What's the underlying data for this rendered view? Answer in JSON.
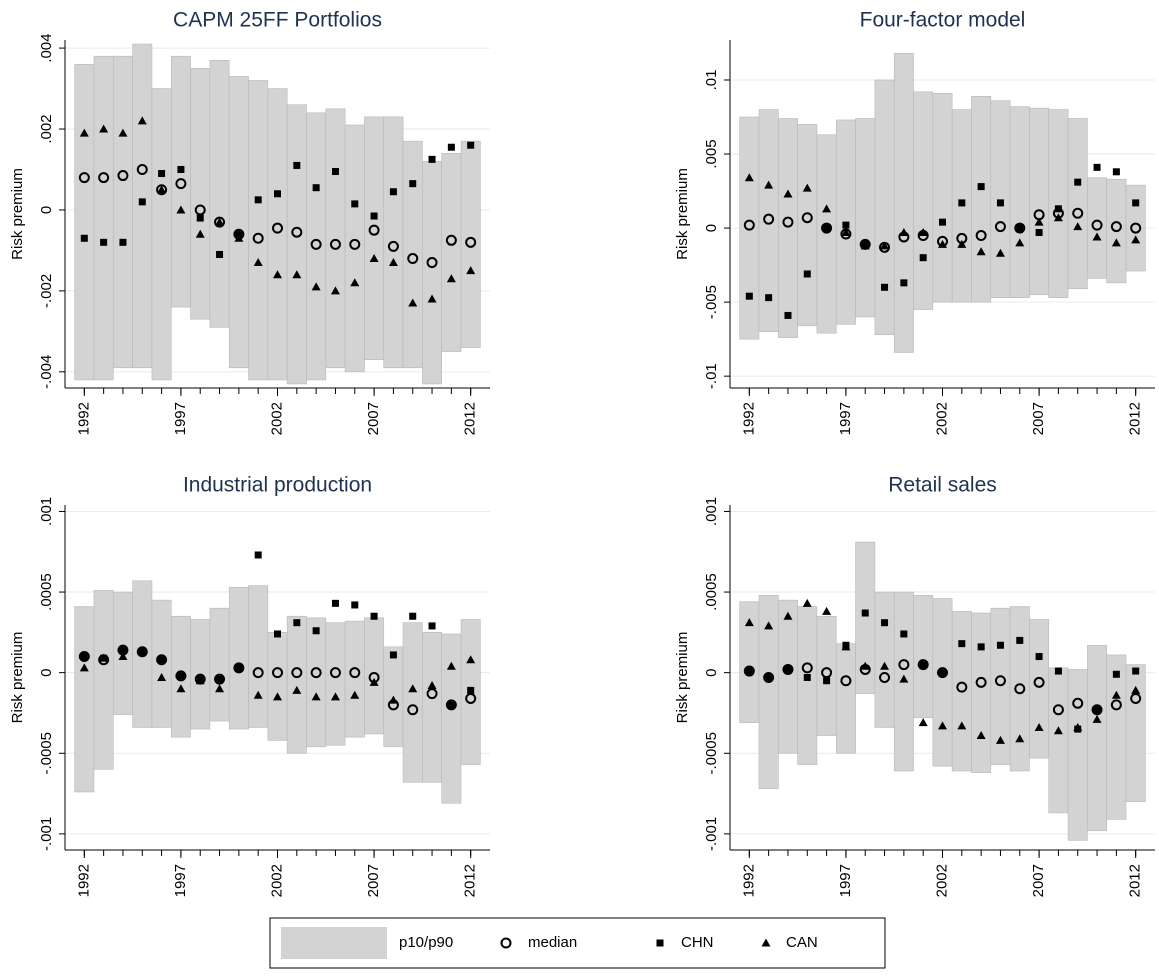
{
  "legend": {
    "items": [
      {
        "name": "p10/p90",
        "color": "#d3d3d3",
        "marker": "band"
      },
      {
        "name": "median",
        "color": "#000000",
        "marker": "circle-open"
      },
      {
        "name": "CHN",
        "color": "#000000",
        "marker": "square"
      },
      {
        "name": "CAN",
        "color": "#000000",
        "marker": "triangle"
      }
    ]
  },
  "chart_data": [
    {
      "type": "rangescatter",
      "title": "CAPM 25FF Portfolios",
      "ylabel": "Risk premium",
      "grid": true,
      "x": [
        1992,
        1993,
        1994,
        1995,
        1996,
        1997,
        1998,
        1999,
        2000,
        2001,
        2002,
        2003,
        2004,
        2005,
        2006,
        2007,
        2008,
        2009,
        2010,
        2011,
        2012
      ],
      "xlim": [
        1991,
        2013
      ],
      "xticks": [
        1992,
        1997,
        2002,
        2007,
        2012
      ],
      "ylim": [
        -0.0044,
        0.0042
      ],
      "yticks": [
        {
          "value": -0.004,
          "label": "-.004"
        },
        {
          "value": -0.002,
          "label": "-.002"
        },
        0,
        {
          "value": 0.002,
          "label": ".002"
        },
        {
          "value": 0.004,
          "label": ".004"
        }
      ],
      "p10": [
        -0.0042,
        -0.0042,
        -0.0039,
        -0.0039,
        -0.0042,
        -0.0024,
        -0.0027,
        -0.0029,
        -0.0039,
        -0.0042,
        -0.0042,
        -0.0043,
        -0.0042,
        -0.0039,
        -0.004,
        -0.0037,
        -0.0039,
        -0.0039,
        -0.0043,
        -0.0035,
        -0.0034
      ],
      "p90": [
        0.0036,
        0.0038,
        0.0038,
        0.0041,
        0.003,
        0.0038,
        0.0035,
        0.0037,
        0.0033,
        0.0032,
        0.003,
        0.0026,
        0.0024,
        0.0025,
        0.0021,
        0.0023,
        0.0023,
        0.0017,
        0.0012,
        0.0014,
        0.0017
      ],
      "series": [
        {
          "values": [
            0.0008,
            0.0008,
            0.00085,
            0.001,
            0.0005,
            0.00065,
            0,
            -0.0003,
            -0.0006,
            -0.0007,
            -0.00045,
            -0.00055,
            -0.00085,
            -0.00085,
            -0.00085,
            -0.0005,
            -0.0009,
            -0.0012,
            -0.0013,
            -0.00075,
            -0.0008
          ]
        },
        {
          "values": [
            -0.0007,
            -0.0008,
            -0.0008,
            0.0002,
            0.0009,
            0.001,
            -0.0002,
            -0.0011,
            -0.0006,
            0.00025,
            0.0004,
            0.0011,
            0.00055,
            0.00095,
            0.00015,
            -0.00015,
            0.00045,
            0.00065,
            0.00125,
            0.00155,
            0.0016
          ]
        },
        {
          "values": [
            0.0019,
            0.002,
            0.0019,
            0.0022,
            0.0005,
            0,
            -0.0006,
            -0.0003,
            -0.0007,
            -0.0013,
            -0.0016,
            -0.0016,
            -0.0019,
            -0.002,
            -0.0018,
            -0.0012,
            -0.0013,
            -0.0023,
            -0.0022,
            -0.0017,
            -0.0015
          ]
        }
      ]
    },
    {
      "type": "rangescatter",
      "title": "Four-factor model",
      "ylabel": "Risk premium",
      "grid": true,
      "x": [
        1992,
        1993,
        1994,
        1995,
        1996,
        1997,
        1998,
        1999,
        2000,
        2001,
        2002,
        2003,
        2004,
        2005,
        2006,
        2007,
        2008,
        2009,
        2010,
        2011,
        2012
      ],
      "xlim": [
        1991,
        2013
      ],
      "xticks": [
        1992,
        1997,
        2002,
        2007,
        2012
      ],
      "ylim": [
        -0.0108,
        0.0127
      ],
      "yticks": [
        {
          "value": -0.01,
          "label": "-.01"
        },
        {
          "value": -0.005,
          "label": "-.005"
        },
        0,
        {
          "value": 0.005,
          "label": ".005"
        },
        {
          "value": 0.01,
          "label": ".01"
        }
      ],
      "p10": [
        -0.0075,
        -0.007,
        -0.0074,
        -0.0066,
        -0.0071,
        -0.0065,
        -0.006,
        -0.0072,
        -0.0084,
        -0.0055,
        -0.005,
        -0.005,
        -0.005,
        -0.0047,
        -0.0047,
        -0.0045,
        -0.0047,
        -0.0041,
        -0.0034,
        -0.0037,
        -0.0029
      ],
      "p90": [
        0.0075,
        0.008,
        0.0074,
        0.007,
        0.0063,
        0.0073,
        0.0074,
        0.01,
        0.0118,
        0.0092,
        0.0091,
        0.008,
        0.0089,
        0.0086,
        0.0082,
        0.0081,
        0.008,
        0.0074,
        0.0034,
        0.0033,
        0.0029
      ],
      "series": [
        {
          "values": [
            0.0002,
            0.0006,
            0.0004,
            0.0007,
            0,
            -0.0004,
            -0.0011,
            -0.0013,
            -0.0006,
            -0.0005,
            -0.0009,
            -0.0007,
            -0.0005,
            0.0001,
            0,
            0.0009,
            0.001,
            0.001,
            0.0002,
            0.0001,
            0
          ]
        },
        {
          "values": [
            -0.0046,
            -0.0047,
            -0.0059,
            -0.0031,
            0,
            0.0002,
            -0.0011,
            -0.004,
            -0.0037,
            -0.002,
            0.0004,
            0.0017,
            0.0028,
            0.0017,
            0,
            -0.0003,
            0.0013,
            0.0031,
            0.0041,
            0.0038,
            0.0017
          ]
        },
        {
          "values": [
            0.0034,
            0.0029,
            0.0023,
            0.0027,
            0.0013,
            -0.0003,
            -0.0012,
            -0.0012,
            -0.0003,
            -0.0003,
            -0.0011,
            -0.0011,
            -0.0016,
            -0.0017,
            -0.001,
            0.0004,
            0.0007,
            0.0001,
            -0.0006,
            -0.001,
            -0.0008
          ]
        }
      ]
    },
    {
      "type": "rangescatter",
      "title": "Industrial production",
      "ylabel": "Risk premium",
      "grid": true,
      "x": [
        1992,
        1993,
        1994,
        1995,
        1996,
        1997,
        1998,
        1999,
        2000,
        2001,
        2002,
        2003,
        2004,
        2005,
        2006,
        2007,
        2008,
        2009,
        2010,
        2011,
        2012
      ],
      "xlim": [
        1991,
        2013
      ],
      "xticks": [
        1992,
        1997,
        2002,
        2007,
        2012
      ],
      "ylim": [
        -0.0011,
        0.00104
      ],
      "yticks": [
        {
          "value": -0.001,
          "label": "-.001"
        },
        {
          "value": -0.0005,
          "label": "-.0005"
        },
        0,
        {
          "value": 0.0005,
          "label": ".0005"
        },
        {
          "value": 0.001,
          "label": ".001"
        }
      ],
      "p10": [
        -0.00074,
        -0.0006,
        -0.00026,
        -0.00034,
        -0.00034,
        -0.0004,
        -0.00035,
        -0.0003,
        -0.00035,
        -0.00034,
        -0.00042,
        -0.0005,
        -0.00046,
        -0.00045,
        -0.0004,
        -0.00038,
        -0.00046,
        -0.00068,
        -0.00068,
        -0.00081,
        -0.00057
      ],
      "p90": [
        0.00041,
        0.00051,
        0.0005,
        0.00057,
        0.00045,
        0.00035,
        0.00033,
        0.0004,
        0.00053,
        0.00054,
        0.00025,
        0.00035,
        0.00034,
        0.00031,
        0.00032,
        0.00034,
        0.00016,
        0.00031,
        0.00025,
        0.00024,
        0.00033
      ],
      "series": [
        {
          "values": [
            0.0001,
            8e-05,
            0.00014,
            0.00013,
            8e-05,
            -2e-05,
            -4e-05,
            -4e-05,
            3e-05,
            0,
            0,
            0,
            0,
            0,
            0,
            -3e-05,
            -0.0002,
            -0.00023,
            -0.00013,
            -0.0002,
            -0.00016
          ]
        },
        {
          "values": [
            0.0001,
            9e-05,
            0.00014,
            0.00013,
            8e-05,
            -2e-05,
            -4e-05,
            -4e-05,
            3e-05,
            0.00073,
            0.00024,
            0.00031,
            0.00026,
            0.00043,
            0.00042,
            0.00035,
            0.00011,
            0.00035,
            0.00029,
            -0.0002,
            -0.00011
          ]
        },
        {
          "values": [
            3e-05,
            9e-05,
            0.0001,
            0.00013,
            -3e-05,
            -0.0001,
            -5e-05,
            -0.0001,
            3e-05,
            -0.00014,
            -0.00015,
            -0.00011,
            -0.00015,
            -0.00015,
            -0.00014,
            -6e-05,
            -0.00017,
            -0.0001,
            -8e-05,
            4e-05,
            8e-05
          ]
        }
      ]
    },
    {
      "type": "rangescatter",
      "title": "Retail sales",
      "ylabel": "Risk premium",
      "grid": true,
      "x": [
        1992,
        1993,
        1994,
        1995,
        1996,
        1997,
        1998,
        1999,
        2000,
        2001,
        2002,
        2003,
        2004,
        2005,
        2006,
        2007,
        2008,
        2009,
        2010,
        2011,
        2012
      ],
      "xlim": [
        1991,
        2013
      ],
      "xticks": [
        1992,
        1997,
        2002,
        2007,
        2012
      ],
      "ylim": [
        -0.0011,
        0.00104
      ],
      "yticks": [
        {
          "value": -0.001,
          "label": "-.001"
        },
        {
          "value": -0.0005,
          "label": "-.0005"
        },
        0,
        {
          "value": 0.0005,
          "label": ".0005"
        },
        {
          "value": 0.001,
          "label": ".001"
        }
      ],
      "p10": [
        -0.00031,
        -0.00072,
        -0.0005,
        -0.00057,
        -0.00039,
        -0.0005,
        -0.00013,
        -0.00034,
        -0.00061,
        -0.00028,
        -0.00058,
        -0.00061,
        -0.00062,
        -0.00057,
        -0.00061,
        -0.00053,
        -0.00087,
        -0.00104,
        -0.00098,
        -0.00091,
        -0.0008
      ],
      "p90": [
        0.00044,
        0.00048,
        0.00045,
        0.00041,
        0.00035,
        0.00018,
        0.00081,
        0.0005,
        0.0005,
        0.00048,
        0.00046,
        0.00038,
        0.00037,
        0.0004,
        0.00041,
        0.00033,
        3e-05,
        2e-05,
        0.00017,
        0.00011,
        5e-05
      ],
      "series": [
        {
          "values": [
            1e-05,
            -3e-05,
            2e-05,
            3e-05,
            0,
            -5e-05,
            2e-05,
            -3e-05,
            5e-05,
            5e-05,
            0,
            -9e-05,
            -6e-05,
            -5e-05,
            -0.0001,
            -6e-05,
            -0.00023,
            -0.00019,
            -0.00023,
            -0.0002,
            -0.00016
          ]
        },
        {
          "values": [
            1e-05,
            -3e-05,
            2e-05,
            -3e-05,
            -5e-05,
            0.00017,
            0.00037,
            0.00031,
            0.00024,
            5e-05,
            0,
            0.00018,
            0.00016,
            0.00017,
            0.0002,
            0.0001,
            1e-05,
            -0.00035,
            -0.00023,
            -1e-05,
            1e-05
          ]
        },
        {
          "values": [
            0.00031,
            0.00029,
            0.00035,
            0.00043,
            0.00038,
            0.00016,
            4e-05,
            4e-05,
            -4e-05,
            -0.00031,
            -0.00033,
            -0.00033,
            -0.00039,
            -0.00042,
            -0.00041,
            -0.00034,
            -0.00036,
            -0.00034,
            -0.00029,
            -0.00014,
            -0.00011
          ]
        }
      ]
    }
  ]
}
